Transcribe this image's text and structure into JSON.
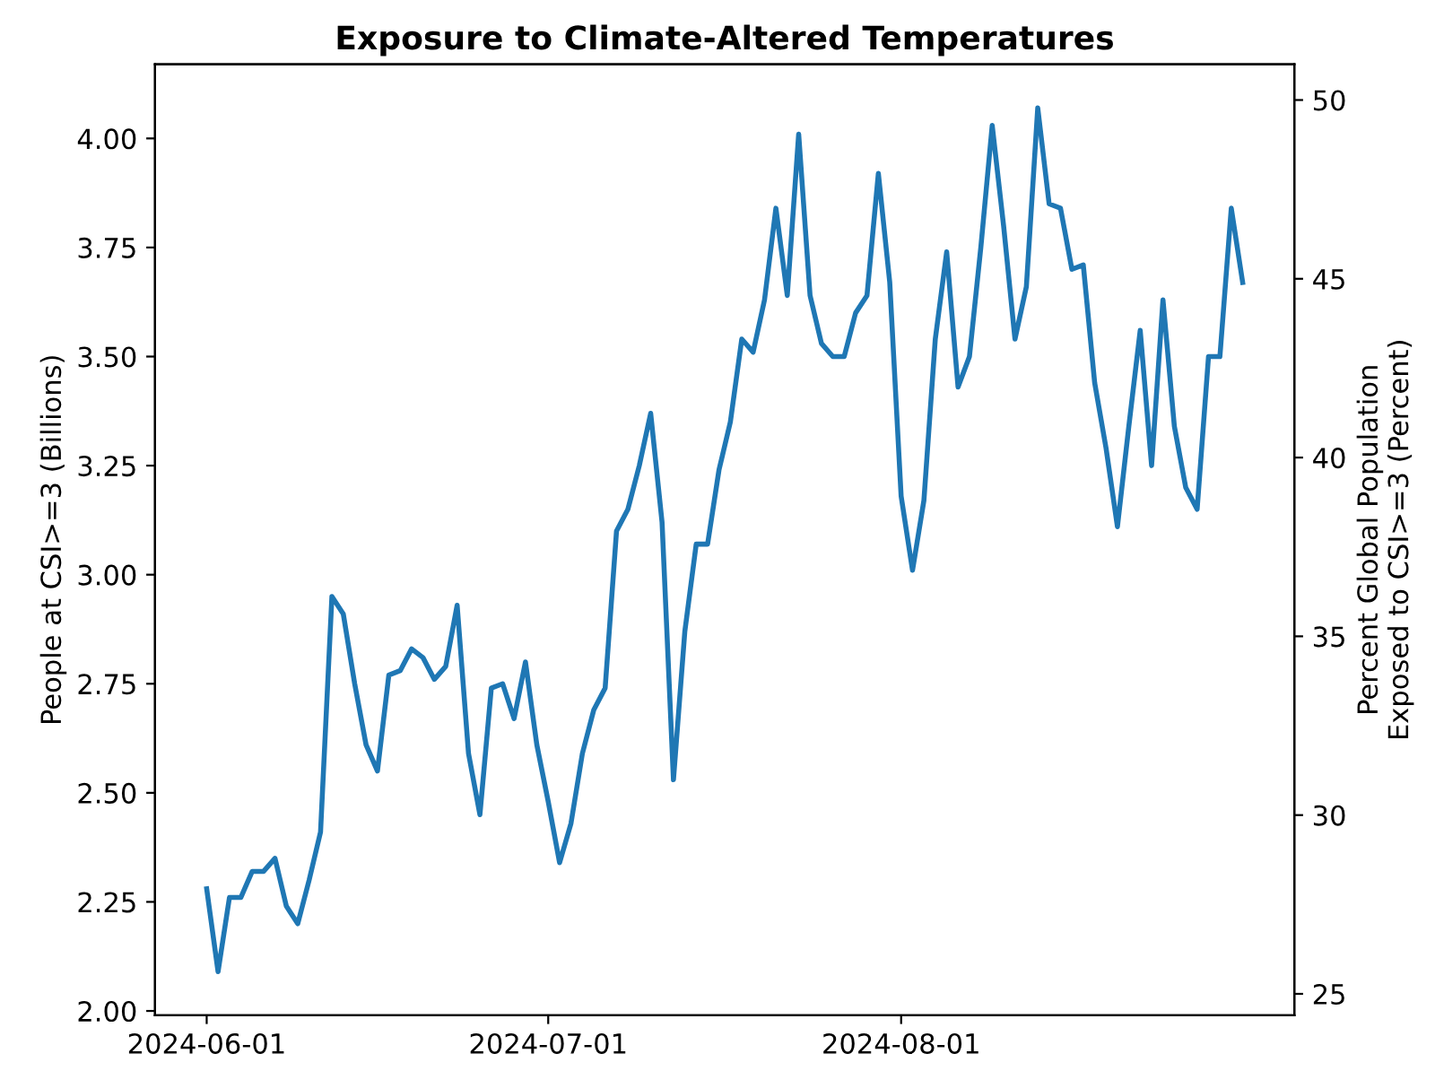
{
  "chart_data": {
    "type": "line",
    "title": "Exposure to Climate-Altered Temperatures",
    "ylabel": "People at CSI>=3 (Billions)",
    "y2label": "Percent Global Population\nExposed to CSI>=3 (Percent)",
    "x": [
      "2024-06-01",
      "2024-06-02",
      "2024-06-03",
      "2024-06-04",
      "2024-06-05",
      "2024-06-06",
      "2024-06-07",
      "2024-06-08",
      "2024-06-09",
      "2024-06-10",
      "2024-06-11",
      "2024-06-12",
      "2024-06-13",
      "2024-06-14",
      "2024-06-15",
      "2024-06-16",
      "2024-06-17",
      "2024-06-18",
      "2024-06-19",
      "2024-06-20",
      "2024-06-21",
      "2024-06-22",
      "2024-06-23",
      "2024-06-24",
      "2024-06-25",
      "2024-06-26",
      "2024-06-27",
      "2024-06-28",
      "2024-06-29",
      "2024-06-30",
      "2024-07-01",
      "2024-07-02",
      "2024-07-03",
      "2024-07-04",
      "2024-07-05",
      "2024-07-06",
      "2024-07-07",
      "2024-07-08",
      "2024-07-09",
      "2024-07-10",
      "2024-07-11",
      "2024-07-12",
      "2024-07-13",
      "2024-07-14",
      "2024-07-15",
      "2024-07-16",
      "2024-07-17",
      "2024-07-18",
      "2024-07-19",
      "2024-07-20",
      "2024-07-21",
      "2024-07-22",
      "2024-07-23",
      "2024-07-24",
      "2024-07-25",
      "2024-07-26",
      "2024-07-27",
      "2024-07-28",
      "2024-07-29",
      "2024-07-30",
      "2024-07-31",
      "2024-08-01",
      "2024-08-02",
      "2024-08-03",
      "2024-08-04",
      "2024-08-05",
      "2024-08-06",
      "2024-08-07",
      "2024-08-08",
      "2024-08-09",
      "2024-08-10",
      "2024-08-11",
      "2024-08-12",
      "2024-08-13",
      "2024-08-14",
      "2024-08-15",
      "2024-08-16",
      "2024-08-17",
      "2024-08-18",
      "2024-08-19",
      "2024-08-20",
      "2024-08-21",
      "2024-08-22",
      "2024-08-23",
      "2024-08-24",
      "2024-08-25",
      "2024-08-26",
      "2024-08-27",
      "2024-08-28",
      "2024-08-29",
      "2024-08-30",
      "2024-08-31"
    ],
    "series": [
      {
        "color": "#1f77b4",
        "values": [
          2.28,
          2.09,
          2.26,
          2.26,
          2.32,
          2.32,
          2.35,
          2.24,
          2.2,
          2.3,
          2.41,
          2.95,
          2.91,
          2.75,
          2.61,
          2.55,
          2.77,
          2.78,
          2.83,
          2.81,
          2.76,
          2.79,
          2.93,
          2.59,
          2.45,
          2.74,
          2.75,
          2.67,
          2.8,
          2.61,
          2.48,
          2.34,
          2.43,
          2.59,
          2.69,
          2.74,
          3.1,
          3.15,
          3.25,
          3.37,
          3.12,
          2.53,
          2.87,
          3.07,
          3.07,
          3.24,
          3.35,
          3.54,
          3.51,
          3.63,
          3.84,
          3.64,
          4.01,
          3.64,
          3.53,
          3.5,
          3.5,
          3.6,
          3.64,
          3.92,
          3.67,
          3.18,
          3.01,
          3.17,
          3.54,
          3.74,
          3.43,
          3.5,
          3.75,
          4.03,
          3.8,
          3.54,
          3.66,
          4.07,
          3.85,
          3.84,
          3.7,
          3.71,
          3.44,
          3.29,
          3.11,
          3.34,
          3.56,
          3.25,
          3.63,
          3.34,
          3.2,
          3.15,
          3.5,
          3.5,
          3.84,
          3.67
        ]
      }
    ],
    "xlim": [
      "2024-05-27T11:00",
      "2024-09-04T13:00"
    ],
    "xticks": [
      {
        "value": "2024-06-01",
        "label": "2024-06-01"
      },
      {
        "value": "2024-07-01",
        "label": "2024-07-01"
      },
      {
        "value": "2024-08-01",
        "label": "2024-08-01"
      }
    ],
    "ylim": [
      1.99,
      4.17
    ],
    "yticks": [
      {
        "value": 2.0,
        "label": "2.00"
      },
      {
        "value": 2.25,
        "label": "2.25"
      },
      {
        "value": 2.5,
        "label": "2.50"
      },
      {
        "value": 2.75,
        "label": "2.75"
      },
      {
        "value": 3.0,
        "label": "3.00"
      },
      {
        "value": 3.25,
        "label": "3.25"
      },
      {
        "value": 3.5,
        "label": "3.50"
      },
      {
        "value": 3.75,
        "label": "3.75"
      },
      {
        "value": 4.0,
        "label": "4.00"
      }
    ],
    "y2lim": [
      24.4,
      51.0
    ],
    "y2ticks": [
      25,
      30,
      35,
      40,
      45,
      50
    ],
    "grid": false,
    "legend": false,
    "line_style": "solid",
    "marker": "none"
  }
}
